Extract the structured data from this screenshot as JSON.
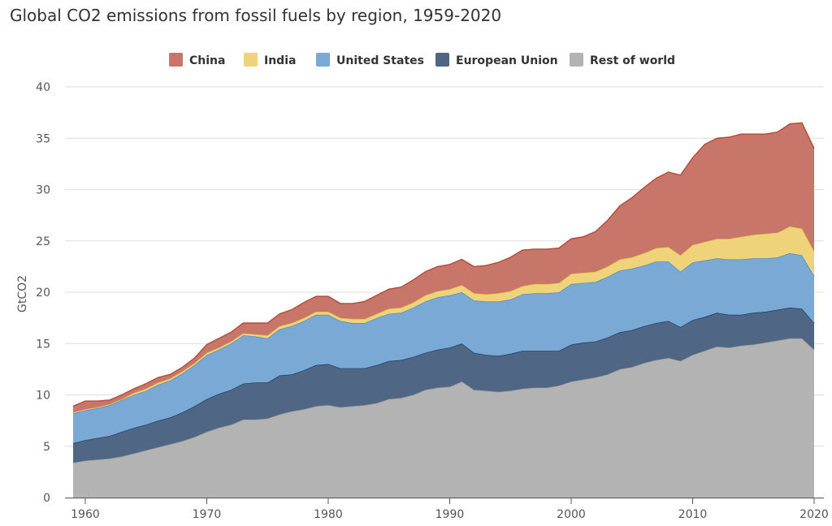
{
  "chart_data": {
    "type": "area",
    "stacked": true,
    "title": "Global CO2 emissions from fossil fuels by region, 1959-2020",
    "ylabel": "GtCO2",
    "xlabel": "",
    "xlim": [
      1959,
      2020
    ],
    "ylim": [
      0,
      40
    ],
    "yticks": [
      0,
      5,
      10,
      15,
      20,
      25,
      30,
      35,
      40
    ],
    "xticks": [
      1960,
      1970,
      1980,
      1990,
      2000,
      2010,
      2020
    ],
    "grid": true,
    "legend_position": "top-center",
    "legend": [
      "China",
      "India",
      "United States",
      "European Union",
      "Rest of world"
    ],
    "x": [
      1959,
      1960,
      1961,
      1962,
      1963,
      1964,
      1965,
      1966,
      1967,
      1968,
      1969,
      1970,
      1971,
      1972,
      1973,
      1974,
      1975,
      1976,
      1977,
      1978,
      1979,
      1980,
      1981,
      1982,
      1983,
      1984,
      1985,
      1986,
      1987,
      1988,
      1989,
      1990,
      1991,
      1992,
      1993,
      1994,
      1995,
      1996,
      1997,
      1998,
      1999,
      2000,
      2001,
      2002,
      2003,
      2004,
      2005,
      2006,
      2007,
      2008,
      2009,
      2010,
      2011,
      2012,
      2013,
      2014,
      2015,
      2016,
      2017,
      2018,
      2019,
      2020
    ],
    "series": [
      {
        "name": "Rest of world",
        "color": "#b3b3b3",
        "values": [
          3.4,
          3.6,
          3.7,
          3.8,
          4.0,
          4.3,
          4.6,
          4.9,
          5.2,
          5.5,
          5.9,
          6.4,
          6.8,
          7.1,
          7.6,
          7.6,
          7.7,
          8.1,
          8.4,
          8.6,
          8.9,
          9.0,
          8.8,
          8.9,
          9.0,
          9.2,
          9.6,
          9.7,
          10.0,
          10.5,
          10.7,
          10.8,
          11.3,
          10.5,
          10.4,
          10.3,
          10.4,
          10.6,
          10.7,
          10.7,
          10.9,
          11.3,
          11.5,
          11.7,
          12.0,
          12.5,
          12.7,
          13.1,
          13.4,
          13.6,
          13.3,
          13.9,
          14.3,
          14.7,
          14.6,
          14.8,
          14.9,
          15.1,
          15.3,
          15.5,
          15.5,
          14.4
        ]
      },
      {
        "name": "European Union",
        "color": "#4f6785",
        "values": [
          1.9,
          2.0,
          2.1,
          2.2,
          2.4,
          2.5,
          2.5,
          2.6,
          2.6,
          2.8,
          3.0,
          3.2,
          3.3,
          3.4,
          3.5,
          3.6,
          3.5,
          3.8,
          3.6,
          3.8,
          4.0,
          4.0,
          3.8,
          3.7,
          3.6,
          3.7,
          3.7,
          3.7,
          3.7,
          3.6,
          3.7,
          3.8,
          3.7,
          3.6,
          3.5,
          3.5,
          3.6,
          3.7,
          3.6,
          3.6,
          3.4,
          3.6,
          3.6,
          3.5,
          3.6,
          3.6,
          3.6,
          3.6,
          3.6,
          3.6,
          3.3,
          3.4,
          3.3,
          3.3,
          3.2,
          3.0,
          3.1,
          3.0,
          3.0,
          3.0,
          2.9,
          2.6
        ]
      },
      {
        "name": "United States",
        "color": "#7ba9d6",
        "values": [
          2.9,
          2.9,
          2.9,
          3.0,
          3.1,
          3.2,
          3.3,
          3.5,
          3.6,
          3.8,
          4.0,
          4.3,
          4.3,
          4.5,
          4.7,
          4.5,
          4.3,
          4.5,
          4.7,
          4.8,
          4.9,
          4.8,
          4.6,
          4.4,
          4.4,
          4.6,
          4.6,
          4.6,
          4.8,
          5.0,
          5.1,
          5.1,
          5.0,
          5.1,
          5.2,
          5.3,
          5.3,
          5.5,
          5.6,
          5.6,
          5.7,
          5.9,
          5.8,
          5.8,
          5.9,
          6.0,
          6.0,
          5.9,
          6.0,
          5.8,
          5.4,
          5.6,
          5.5,
          5.3,
          5.4,
          5.4,
          5.3,
          5.2,
          5.1,
          5.3,
          5.2,
          4.6
        ]
      },
      {
        "name": "India",
        "color": "#efd37a",
        "values": [
          0.1,
          0.1,
          0.1,
          0.1,
          0.1,
          0.2,
          0.2,
          0.2,
          0.2,
          0.2,
          0.2,
          0.2,
          0.2,
          0.2,
          0.2,
          0.2,
          0.3,
          0.3,
          0.3,
          0.3,
          0.3,
          0.3,
          0.3,
          0.4,
          0.4,
          0.4,
          0.5,
          0.5,
          0.5,
          0.6,
          0.6,
          0.6,
          0.7,
          0.7,
          0.7,
          0.8,
          0.8,
          0.8,
          0.9,
          0.9,
          0.9,
          1.0,
          1.0,
          1.0,
          1.0,
          1.1,
          1.1,
          1.2,
          1.3,
          1.4,
          1.6,
          1.7,
          1.8,
          1.9,
          2.0,
          2.2,
          2.3,
          2.4,
          2.4,
          2.6,
          2.6,
          2.4
        ]
      },
      {
        "name": "China",
        "color": "#c8766a",
        "values": [
          0.6,
          0.8,
          0.6,
          0.4,
          0.4,
          0.4,
          0.5,
          0.5,
          0.4,
          0.4,
          0.5,
          0.8,
          0.9,
          0.9,
          1.0,
          1.1,
          1.2,
          1.2,
          1.3,
          1.5,
          1.5,
          1.5,
          1.4,
          1.5,
          1.7,
          1.8,
          1.9,
          2.0,
          2.2,
          2.3,
          2.4,
          2.4,
          2.5,
          2.6,
          2.8,
          3.0,
          3.3,
          3.5,
          3.4,
          3.4,
          3.4,
          3.4,
          3.5,
          3.9,
          4.5,
          5.2,
          5.8,
          6.4,
          6.8,
          7.3,
          7.8,
          8.5,
          9.5,
          9.8,
          9.9,
          10.0,
          9.8,
          9.7,
          9.8,
          10.0,
          10.3,
          10.0
        ]
      }
    ]
  }
}
